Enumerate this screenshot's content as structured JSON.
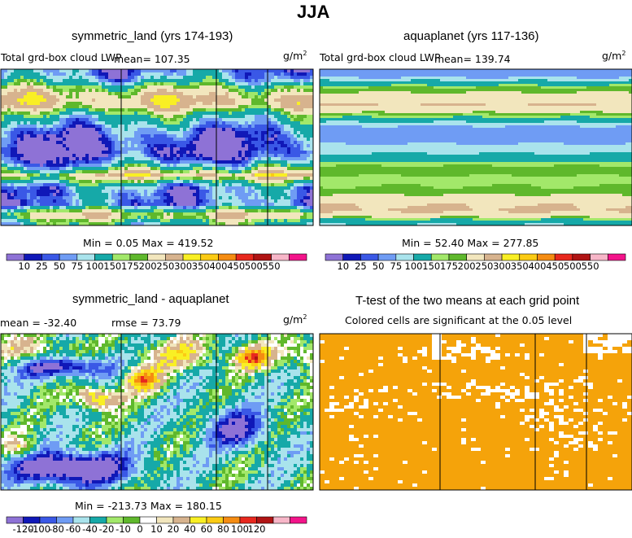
{
  "figure_title": "JJA",
  "palette_pos": [
    "#8e72d6",
    "#1018b8",
    "#3a58e6",
    "#6f9cf4",
    "#a9e3ec",
    "#16a9a8",
    "#a2e86a",
    "#5fb82c",
    "#f2e6bd",
    "#d7b38e",
    "#f9ef24",
    "#fbcb14",
    "#f58c12",
    "#e8281e",
    "#b01414",
    "#f7b6c8",
    "#f3148a"
  ],
  "palette_diff": [
    "#8e72d6",
    "#1018b8",
    "#3a58e6",
    "#6f9cf4",
    "#a9e3ec",
    "#16a9a8",
    "#a2e86a",
    "#5fb82c",
    "#ffffff",
    "#f2e6bd",
    "#d7b38e",
    "#f9ef24",
    "#fbcb14",
    "#f58c12",
    "#e8281e",
    "#b01414",
    "#f7b6c8",
    "#f3148a"
  ],
  "significance_color": "#f5a30a",
  "panels": {
    "symmetric_land": {
      "title": "symmetric_land (yrs 174-193)",
      "field": "Total grd-box cloud LWP",
      "mean": "mean= 107.35",
      "units": "g/m",
      "units_exp": "2",
      "minmax": "Min =    0.05 Max = 419.52",
      "colorbar_labels": [
        "10",
        "25",
        "50",
        "75",
        "100",
        "150",
        "175",
        "200",
        "250",
        "300",
        "350",
        "400",
        "450",
        "500",
        "550"
      ]
    },
    "aquaplanet": {
      "title": "aquaplanet (yrs 117-136)",
      "field": "Total grd-box cloud LWP",
      "mean": "mean= 139.74",
      "units": "g/m",
      "units_exp": "2",
      "minmax": "Min =   52.40 Max = 277.85",
      "colorbar_labels": [
        "10",
        "25",
        "50",
        "75",
        "100",
        "150",
        "175",
        "200",
        "250",
        "300",
        "350",
        "400",
        "450",
        "500",
        "550"
      ]
    },
    "difference": {
      "title": "symmetric_land - aquaplanet",
      "mean": "mean = -32.40",
      "rmse": "rmse =   73.79",
      "units": "g/m",
      "units_exp": "2",
      "minmax": "Min = -213.73 Max = 180.15",
      "colorbar_labels": [
        "-120",
        "-100",
        "-80",
        "-60",
        "-40",
        "-20",
        "-10",
        "0",
        "10",
        "20",
        "40",
        "60",
        "80",
        "100",
        "120"
      ]
    },
    "ttest": {
      "title": "T-test of the two means at each grid point",
      "subtitle": "Colored cells are significant at the 0.05 level"
    }
  },
  "chart_data": [
    {
      "type": "heatmap",
      "title": "symmetric_land (yrs 174-193)",
      "variable": "Total grd-box cloud LWP",
      "units": "g/m2",
      "mean": 107.35,
      "min": 0.05,
      "max": 419.52,
      "contour_levels": [
        10,
        25,
        50,
        75,
        100,
        150,
        175,
        200,
        250,
        300,
        350,
        400,
        450,
        500,
        550
      ],
      "land_columns_frac": [
        0.0,
        0.385,
        0.69,
        0.855
      ],
      "zonal_profile_N_to_S": [
        55,
        75,
        115,
        190,
        230,
        265,
        250,
        180,
        120,
        95,
        60,
        35,
        20,
        12,
        12,
        35,
        95,
        185,
        275,
        170,
        70,
        55,
        60,
        42,
        150,
        235,
        150,
        115
      ]
    },
    {
      "type": "heatmap",
      "title": "aquaplanet (yrs 117-136)",
      "variable": "Total grd-box cloud LWP",
      "units": "g/m2",
      "mean": 139.74,
      "min": 52.4,
      "max": 277.85,
      "contour_levels": [
        10,
        25,
        50,
        75,
        100,
        150,
        175,
        200,
        250,
        300,
        350,
        400,
        450,
        500,
        550
      ],
      "zonal_profile_N_to_S": [
        60,
        65,
        110,
        180,
        205,
        225,
        255,
        215,
        155,
        95,
        62,
        56,
        62,
        80,
        95,
        110,
        160,
        190,
        180,
        160,
        175,
        190,
        215,
        245,
        255,
        240,
        120,
        90
      ]
    },
    {
      "type": "heatmap",
      "title": "symmetric_land - aquaplanet",
      "units": "g/m2",
      "mean": -32.4,
      "rmse": 73.79,
      "min": -213.73,
      "max": 180.15,
      "contour_levels": [
        -120,
        -100,
        -80,
        -60,
        -40,
        -20,
        -10,
        0,
        10,
        20,
        40,
        60,
        80,
        100,
        120
      ]
    },
    {
      "type": "heatmap",
      "title": "T-test of the two means at each grid point",
      "subtitle": "Colored cells are significant at the 0.05 level",
      "significance_level": 0.05
    }
  ]
}
